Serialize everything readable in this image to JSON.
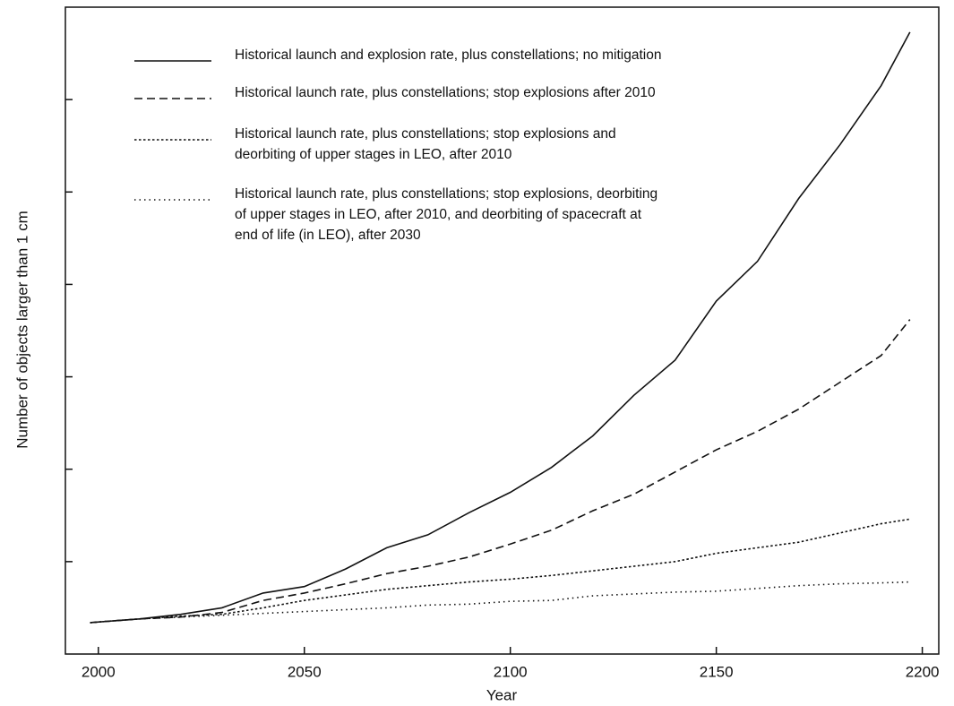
{
  "chart_data": {
    "type": "line",
    "x_label": "Year",
    "y_label": "Number of objects larger than 1 cm",
    "x": [
      1998,
      2010,
      2020,
      2030,
      2040,
      2050,
      2060,
      2070,
      2080,
      2090,
      2100,
      2110,
      2120,
      2130,
      2140,
      2150,
      2160,
      2170,
      2180,
      2190,
      2197
    ],
    "xlim": [
      1992,
      2204
    ],
    "xticks": [
      2000,
      2050,
      2100,
      2150,
      2200
    ],
    "ylim": [
      0,
      7
    ],
    "yticks": [
      1,
      2,
      3,
      4,
      5,
      6
    ],
    "series": [
      {
        "name": "Historical launch and explosion rate, plus constellations; no mitigation",
        "color": "#111111",
        "style": "solid",
        "values": [
          0.34,
          0.38,
          0.43,
          0.5,
          0.66,
          0.73,
          0.92,
          1.15,
          1.29,
          1.53,
          1.75,
          2.02,
          2.36,
          2.8,
          3.18,
          3.82,
          4.25,
          4.93,
          5.51,
          6.15,
          6.73
        ]
      },
      {
        "name": "Historical launch rate, plus constellations; stop explosions after 2010",
        "color": "#111111",
        "style": "dashed",
        "values": [
          0.34,
          0.38,
          0.4,
          0.45,
          0.58,
          0.66,
          0.76,
          0.87,
          0.95,
          1.05,
          1.19,
          1.34,
          1.55,
          1.73,
          1.97,
          2.21,
          2.41,
          2.65,
          2.94,
          3.23,
          3.62
        ]
      },
      {
        "name": "Historical launch rate, plus constellations; stop explosions and\ndeorbiting of upper stages in LEO, after 2010",
        "color": "#111111",
        "style": "dotted",
        "values": [
          0.34,
          0.38,
          0.41,
          0.43,
          0.5,
          0.58,
          0.64,
          0.7,
          0.74,
          0.78,
          0.81,
          0.85,
          0.9,
          0.95,
          1.0,
          1.09,
          1.15,
          1.21,
          1.31,
          1.41,
          1.46
        ]
      },
      {
        "name": "Historical launch rate, plus constellations; stop explosions, deorbiting\nof upper stages in LEO, after 2010, and deorbiting of spacecraft at\nend of life (in LEO), after 2030",
        "color": "#111111",
        "style": "sparse-dotted",
        "values": [
          0.34,
          0.38,
          0.4,
          0.42,
          0.44,
          0.46,
          0.48,
          0.5,
          0.53,
          0.54,
          0.57,
          0.58,
          0.63,
          0.65,
          0.67,
          0.68,
          0.71,
          0.74,
          0.76,
          0.77,
          0.78
        ]
      }
    ]
  }
}
